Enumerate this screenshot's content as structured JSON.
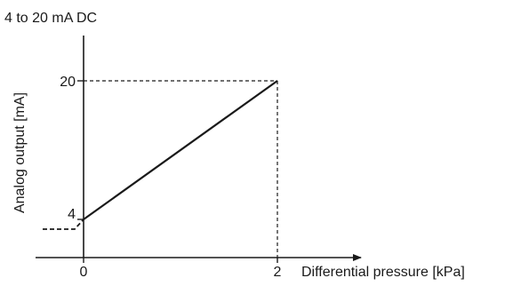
{
  "chart_data": {
    "type": "line",
    "title": "4 to 20 mA DC",
    "xlabel": "Differential pressure [kPa]",
    "ylabel": "Analog output [mA]",
    "xlim": [
      0,
      2
    ],
    "ylim": [
      4,
      20
    ],
    "x_ticks": [
      "0",
      "2"
    ],
    "y_ticks": [
      "4",
      "20"
    ],
    "series": [
      {
        "x": [
          0,
          2
        ],
        "y": [
          4,
          20
        ]
      }
    ],
    "grid": false,
    "legend": "none"
  }
}
